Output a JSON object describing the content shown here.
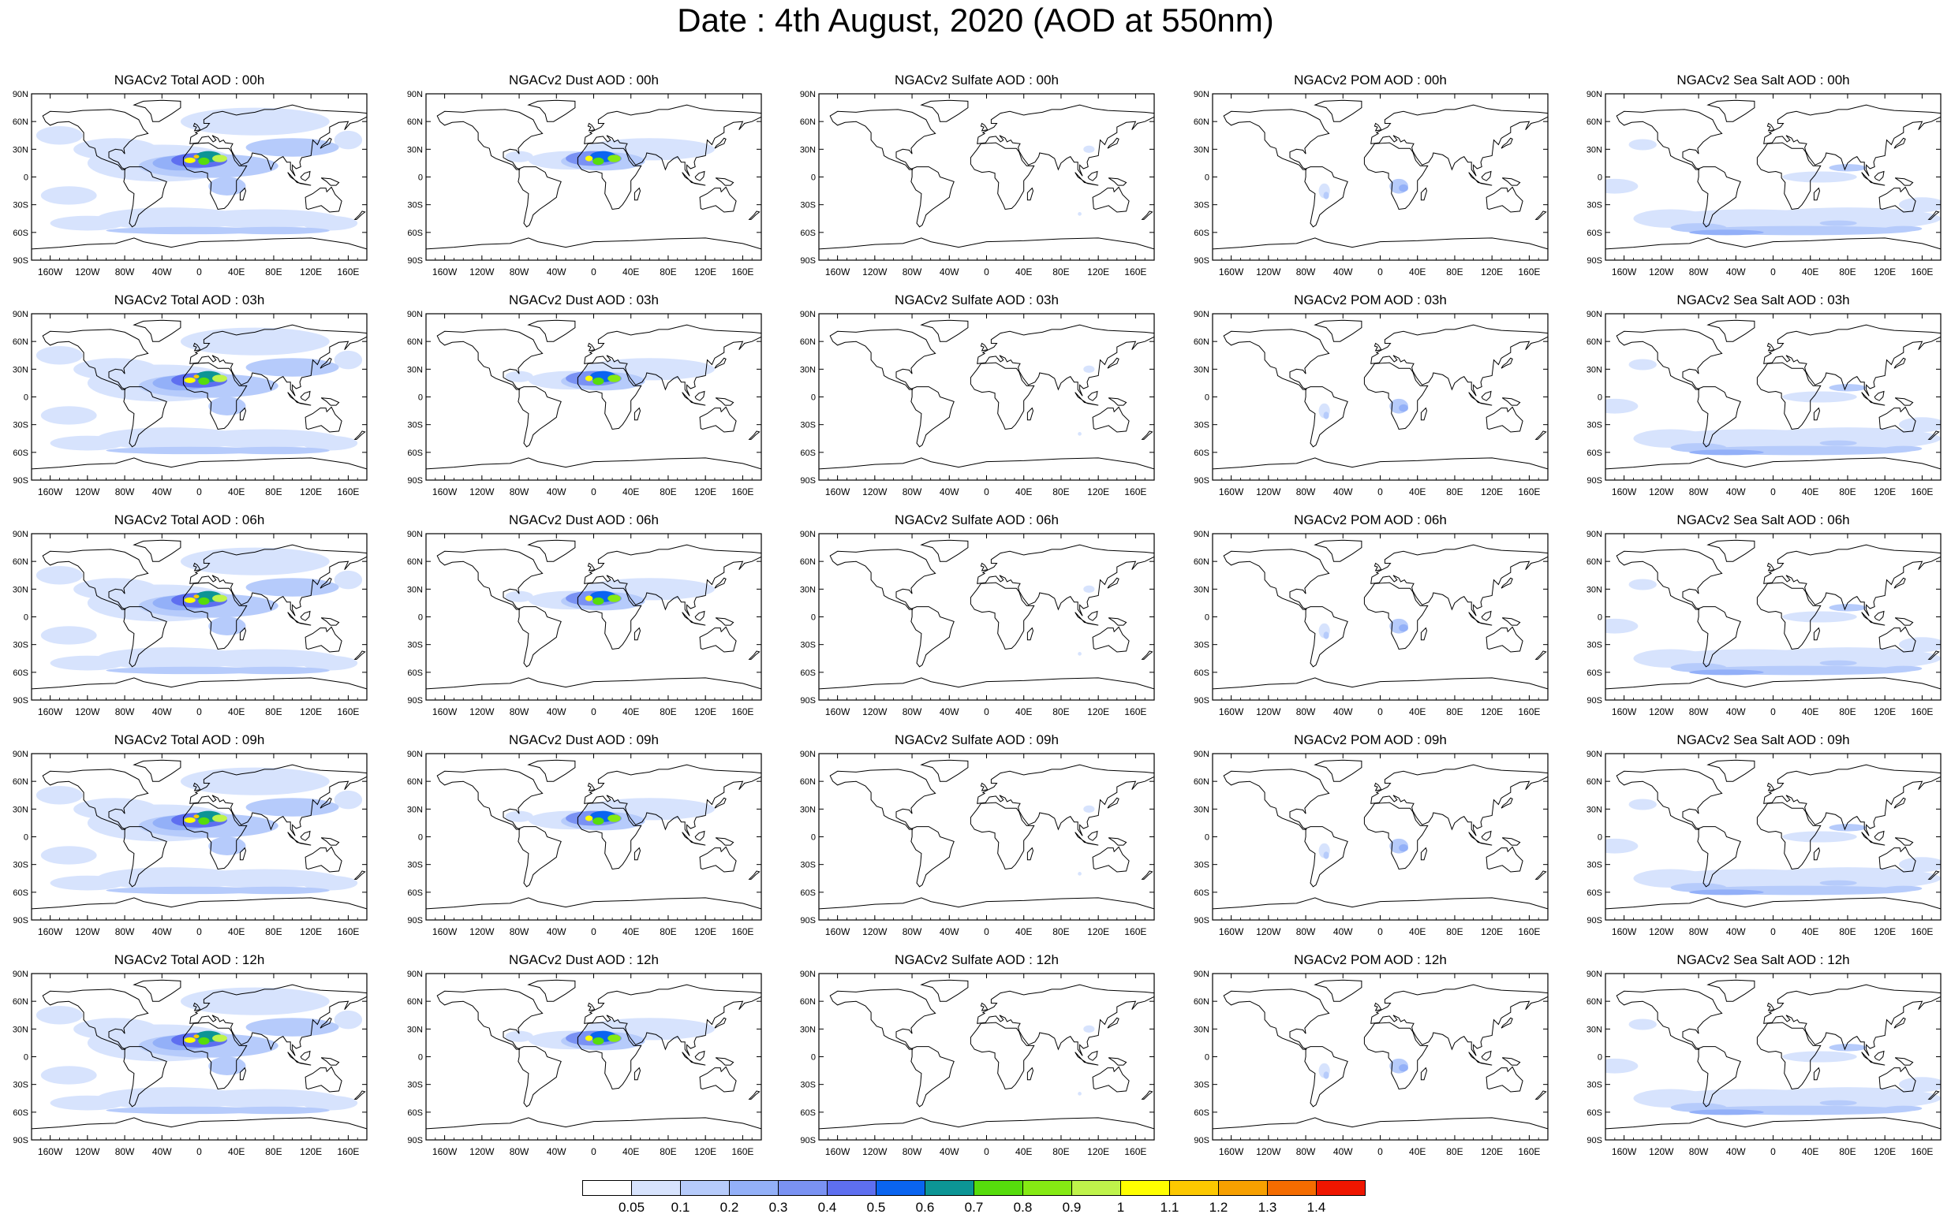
{
  "title": "Date : 4th August, 2020 (AOD at 550nm)",
  "chart_data": {
    "type": "heatmap",
    "title": "Date : 4th August, 2020 (AOD at 550nm)",
    "panels": [
      [
        "NGACv2 Total AOD : 00h",
        "NGACv2 Dust AOD : 00h",
        "NGACv2 Sulfate AOD : 00h",
        "NGACv2 POM AOD : 00h",
        "NGACv2 Sea Salt AOD : 00h"
      ],
      [
        "NGACv2 Total AOD : 03h",
        "NGACv2 Dust AOD : 03h",
        "NGACv2 Sulfate AOD : 03h",
        "NGACv2 POM AOD : 03h",
        "NGACv2 Sea Salt AOD : 03h"
      ],
      [
        "NGACv2 Total AOD : 06h",
        "NGACv2 Dust AOD : 06h",
        "NGACv2 Sulfate AOD : 06h",
        "NGACv2 POM AOD : 06h",
        "NGACv2 Sea Salt AOD : 06h"
      ],
      [
        "NGACv2 Total AOD : 09h",
        "NGACv2 Dust AOD : 09h",
        "NGACv2 Sulfate AOD : 09h",
        "NGACv2 POM AOD : 09h",
        "NGACv2 Sea Salt  AOD : 09h"
      ],
      [
        "NGACv2 Total AOD  : 12h",
        "NGACv2 Dust AOD : 12h",
        "NGACv2 Sulfate AOD : 12h",
        "NGACv2 POM  AOD : 12h",
        "NGACv2 Sea Salt  AOD : 12h"
      ]
    ],
    "lat_ticks": [
      "90N",
      "60N",
      "30N",
      "0",
      "30S",
      "60S",
      "90S"
    ],
    "lon_ticks": [
      "160W",
      "120W",
      "80W",
      "40W",
      "0",
      "40E",
      "80E",
      "120E",
      "160E"
    ],
    "colorbar": {
      "levels": [
        "0.05",
        "0.1",
        "0.2",
        "0.3",
        "0.4",
        "0.5",
        "0.6",
        "0.7",
        "0.8",
        "0.9",
        "1",
        "1.1",
        "1.2",
        "1.3",
        "1.4"
      ],
      "colors": [
        "#ffffff",
        "#d7e3fd",
        "#b6cbfb",
        "#93b0f8",
        "#7a92f3",
        "#5e6ff0",
        "#0a64f0",
        "#0c9595",
        "#56dc0c",
        "#85ea13",
        "#bff34b",
        "#ffff00",
        "#fcc800",
        "#f7a000",
        "#f46c00",
        "#ef1600"
      ]
    }
  }
}
